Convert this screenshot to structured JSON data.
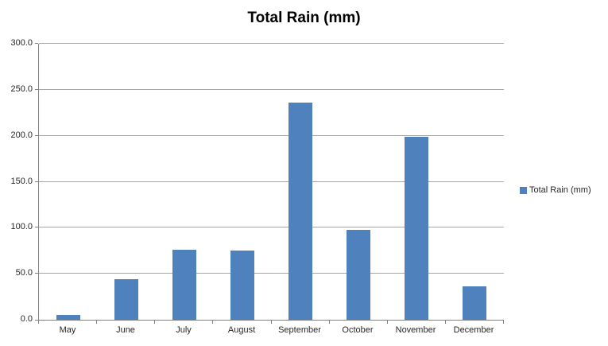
{
  "title": "Total Rain (mm)",
  "legend": {
    "label": "Total Rain (mm)"
  },
  "chart_data": {
    "type": "bar",
    "title": "Total Rain (mm)",
    "categories": [
      "May",
      "June",
      "July",
      "August",
      "September",
      "October",
      "November",
      "December"
    ],
    "series": [
      {
        "name": "Total Rain (mm)",
        "values": [
          5,
          44,
          76,
          75,
          236,
          98,
          199,
          36
        ]
      }
    ],
    "xlabel": "",
    "ylabel": "",
    "ylim": [
      0,
      300
    ],
    "ytick_step": 50,
    "ytick_labels": [
      "0.0",
      "50.0",
      "100.0",
      "150.0",
      "200.0",
      "250.0",
      "300.0"
    ],
    "grid": true,
    "legend_position": "right",
    "colors": {
      "bar": "#4F81BD",
      "gridline": "#A6A6A6",
      "axis": "#808080",
      "text": "#262626",
      "title": "#000000",
      "background": "#FFFFFF"
    }
  }
}
